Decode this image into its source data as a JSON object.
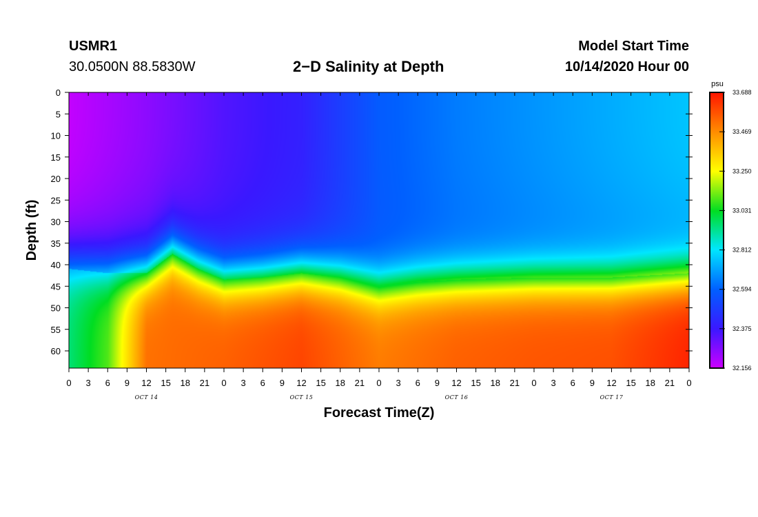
{
  "header": {
    "station": "USMR1",
    "coords": "30.0500N 88.5830W",
    "title": "2−D Salinity at Depth",
    "model_start_label": "Model Start Time",
    "model_start_value": "10/14/2020 Hour 00"
  },
  "chart_data": {
    "type": "heatmap",
    "title": "2−D Salinity at Depth",
    "xlabel": "Forecast Time(Z)",
    "ylabel": "Depth (ft)",
    "x_range_hours": [
      0,
      96
    ],
    "x_tick_step_hours": 3,
    "x_tick_labels": [
      "0",
      "3",
      "6",
      "9",
      "12",
      "15",
      "18",
      "21",
      "0",
      "3",
      "6",
      "9",
      "12",
      "15",
      "18",
      "21",
      "0",
      "3",
      "6",
      "9",
      "12",
      "15",
      "18",
      "21",
      "0",
      "3",
      "6",
      "9",
      "12",
      "15",
      "18",
      "21",
      "0"
    ],
    "day_labels": [
      {
        "label": "OCT 14",
        "hour": 12
      },
      {
        "label": "OCT 15",
        "hour": 36
      },
      {
        "label": "OCT 16",
        "hour": 60
      },
      {
        "label": "OCT 17",
        "hour": 84
      }
    ],
    "y_range_ft": [
      0,
      64
    ],
    "y_ticks": [
      0,
      5,
      10,
      15,
      20,
      25,
      30,
      35,
      40,
      45,
      50,
      55,
      60
    ],
    "colorbar": {
      "unit": "psu",
      "min": 32.156,
      "max": 33.688,
      "ticks": [
        "32.156",
        "32.375",
        "32.594",
        "32.812",
        "33.031",
        "33.250",
        "33.469",
        "33.688"
      ]
    },
    "halocline": {
      "description": "depth (ft) of fresh/salty interface over forecast hours",
      "hours": [
        0,
        6,
        12,
        16,
        20,
        24,
        30,
        36,
        42,
        48,
        54,
        60,
        72,
        84,
        96
      ],
      "depth_ft": [
        41,
        42,
        42,
        37.5,
        41,
        43.5,
        43,
        42,
        43,
        45,
        44,
        43.5,
        43,
        43,
        42
      ]
    },
    "surface_salinity_psu": {
      "hours": [
        0,
        12,
        24,
        36,
        48,
        60,
        72,
        84,
        96
      ],
      "values": [
        32.17,
        32.25,
        32.34,
        32.4,
        32.58,
        32.64,
        32.68,
        32.72,
        32.76
      ]
    },
    "bottom_salinity_psu": {
      "hours": [
        0,
        6,
        12,
        24,
        36,
        48,
        60,
        72,
        84,
        96
      ],
      "values": [
        32.95,
        33.1,
        33.52,
        33.55,
        33.6,
        33.5,
        33.55,
        33.57,
        33.58,
        33.66
      ]
    }
  }
}
